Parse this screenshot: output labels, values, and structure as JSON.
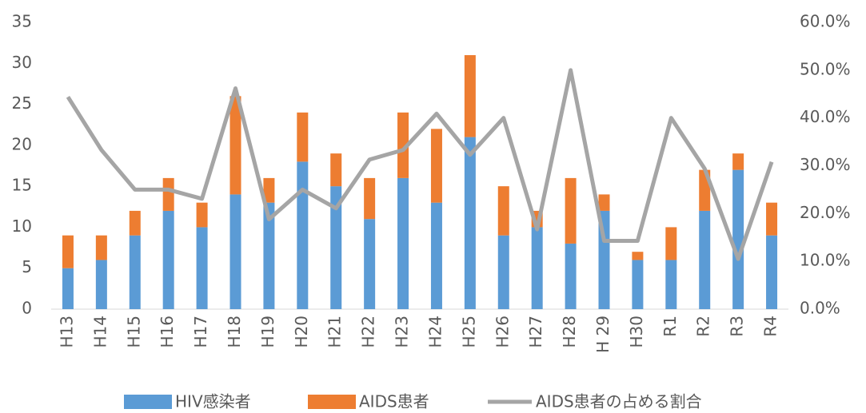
{
  "chart_data": {
    "type": "stacked_bar_line",
    "categories": [
      "H13",
      "H14",
      "H15",
      "H16",
      "H17",
      "H18",
      "H19",
      "H20",
      "H21",
      "H22",
      "H23",
      "H24",
      "H25",
      "H26",
      "H27",
      "H28",
      "H 29",
      "H30",
      "R1",
      "R2",
      "R3",
      "R4"
    ],
    "series": [
      {
        "name": "HIV感染者",
        "color": "#5b9bd5",
        "type": "bar",
        "values": [
          5,
          6,
          9,
          12,
          10,
          14,
          13,
          18,
          15,
          11,
          16,
          13,
          21,
          9,
          10,
          8,
          12,
          6,
          6,
          12,
          17,
          9
        ]
      },
      {
        "name": "AIDS患者",
        "color": "#ed7d31",
        "type": "bar",
        "values": [
          4,
          3,
          3,
          4,
          3,
          12,
          3,
          6,
          4,
          5,
          8,
          9,
          10,
          6,
          2,
          8,
          2,
          1,
          4,
          5,
          2,
          4
        ]
      },
      {
        "name": "AIDS患者の占める割合",
        "color": "#a5a5a5",
        "type": "line",
        "axis": "y2",
        "values": [
          44.4,
          33.3,
          25,
          25,
          23.1,
          46.2,
          18.8,
          25,
          21.1,
          31.3,
          33.3,
          40.9,
          32.3,
          40,
          16.7,
          50,
          14.3,
          14.3,
          40,
          29.4,
          10.5,
          30.8
        ]
      }
    ],
    "ylim": [
      0,
      35
    ],
    "yticks": [
      0,
      5,
      10,
      15,
      20,
      25,
      30,
      35
    ],
    "y2lim": [
      0,
      60
    ],
    "y2ticks": [
      {
        "value": 0,
        "label": "0.0%"
      },
      {
        "value": 10,
        "label": "10.0%"
      },
      {
        "value": 20,
        "label": "20.0%"
      },
      {
        "value": 30,
        "label": "30.0%"
      },
      {
        "value": 40,
        "label": "40.0%"
      },
      {
        "value": 50,
        "label": "50.0%"
      },
      {
        "value": 60,
        "label": "60.0%"
      }
    ],
    "legend": "bottom"
  }
}
